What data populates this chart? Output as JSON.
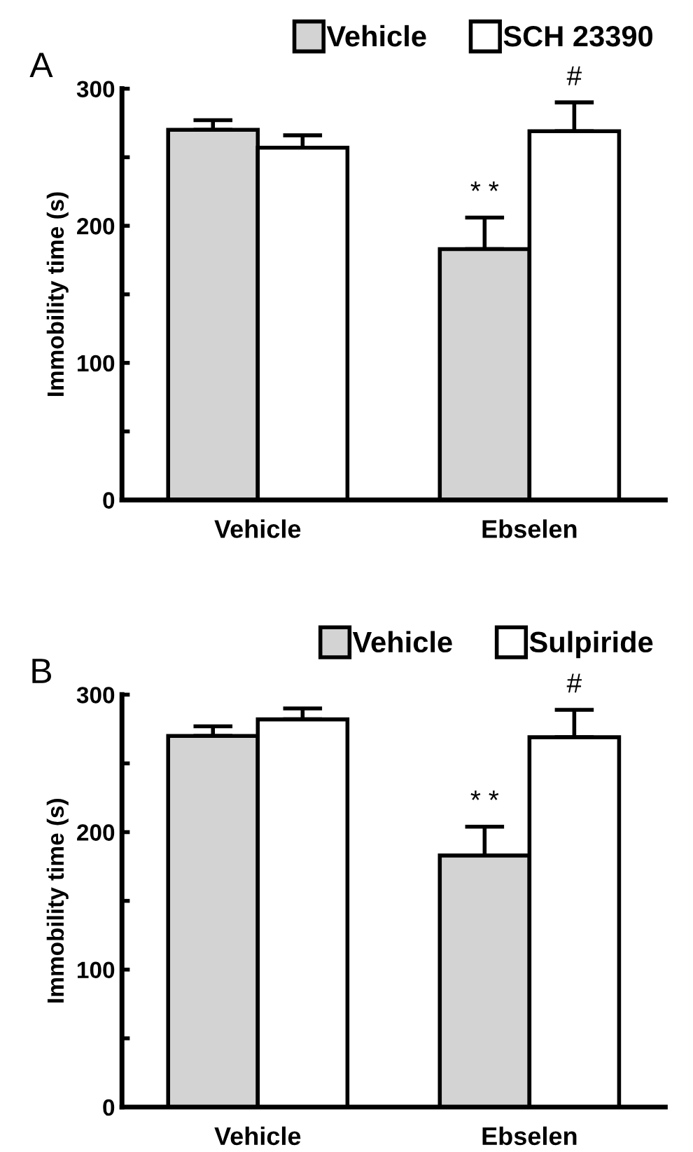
{
  "chart_data": [
    {
      "type": "bar",
      "title": "A",
      "ylabel": "Immobility time (s)",
      "categories": [
        "Vehicle",
        "Ebselen"
      ],
      "series": [
        {
          "name": "Vehicle",
          "color": "#d3d3d3",
          "values": [
            270,
            183
          ],
          "errors": [
            [
              270,
              277
            ],
            [
              183,
              206
            ]
          ]
        },
        {
          "name": "SCH 23390",
          "color": "#ffffff",
          "values": [
            257,
            269
          ],
          "errors": [
            [
              257,
              266
            ],
            [
              269,
              290
            ]
          ]
        }
      ],
      "ylim": [
        0,
        300
      ],
      "yticks": [
        0,
        {
          "value": 50,
          "label": null
        },
        100,
        {
          "value": 150,
          "label": null
        },
        200,
        {
          "value": 250,
          "label": null
        },
        300
      ],
      "annotations": [
        {
          "text": "* *",
          "x": "Ebselen",
          "y": 206
        },
        {
          "text": "#",
          "x": "Ebselen",
          "y": 269
        }
      ],
      "legend": "top right",
      "grid": false
    },
    {
      "type": "bar",
      "title": "B",
      "ylabel": "Immobility time (s)",
      "categories": [
        "Vehicle",
        "Ebselen"
      ],
      "series": [
        {
          "name": "Vehicle",
          "color": "#d3d3d3",
          "values": [
            270,
            183
          ],
          "errors": [
            [
              270,
              277
            ],
            [
              183,
              204
            ]
          ]
        },
        {
          "name": "Sulpiride",
          "color": "#ffffff",
          "values": [
            282,
            269
          ],
          "errors": [
            [
              282,
              290
            ],
            [
              269,
              289
            ]
          ]
        }
      ],
      "ylim": [
        0,
        300
      ],
      "yticks": [
        0,
        {
          "value": 50,
          "label": null
        },
        100,
        {
          "value": 150,
          "label": null
        },
        200,
        {
          "value": 250,
          "label": null
        },
        300
      ],
      "annotations": [
        {
          "text": "* *",
          "x": "Ebselen",
          "y": 204
        },
        {
          "text": "#",
          "x": "Ebselen",
          "y": 269
        }
      ],
      "legend": "top right",
      "grid": false
    }
  ]
}
